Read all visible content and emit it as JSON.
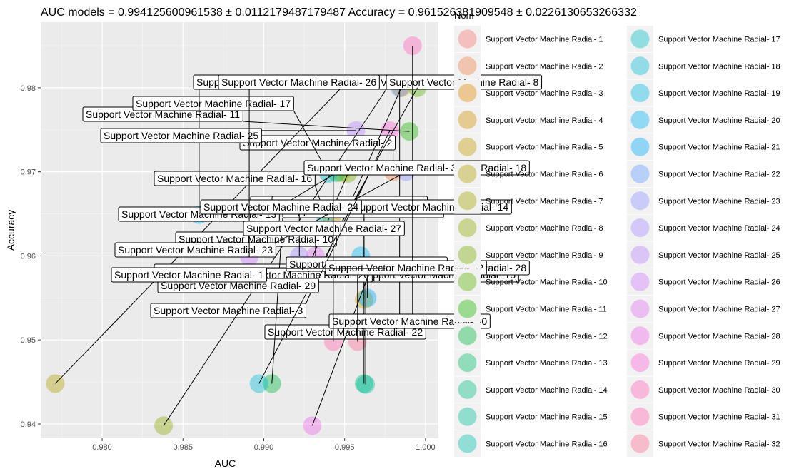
{
  "chart_data": {
    "type": "scatter",
    "title": "AUC models = 0.994125600961538 ± 0.0112179487179487  Accuracy = 0.961526381909548 ± 0.0226130653266332",
    "xlabel": "AUC",
    "ylabel": "Accuracy",
    "xlim": [
      0.9762,
      1.0008
    ],
    "ylim": [
      0.9383,
      0.9878
    ],
    "xticks": [
      0.98,
      0.985,
      0.99,
      0.995,
      1.0
    ],
    "xtick_labels": [
      "0.980",
      "0.985",
      "0.990",
      "0.995",
      "1.000"
    ],
    "yticks": [
      0.94,
      0.95,
      0.96,
      0.97,
      0.98
    ],
    "ytick_labels": [
      "0.94",
      "0.95",
      "0.96",
      "0.97",
      "0.98"
    ],
    "grid": true,
    "legend_title": "Nom",
    "legend_position": "right",
    "point_alpha": 0.4,
    "series": [
      {
        "name": "Support Vector Machine Radial- 1",
        "x": 0.9975,
        "y": 0.9585,
        "label": "Support Vector Machine Radial- 1",
        "color": "#F8766D"
      },
      {
        "name": "Support Vector Machine Radial- 2",
        "x": 0.998,
        "y": 0.97,
        "label": "Support Vector Machine Radial- 2",
        "color": "#EF7F49"
      },
      {
        "name": "Support Vector Machine Radial- 3",
        "x": 0.9985,
        "y": 0.98,
        "label": "Support Vector Machine Radial- 3",
        "color": "#E28A00"
      },
      {
        "name": "Support Vector Machine Radial- 4",
        "x": 0.9942,
        "y": 0.9647,
        "label": "Support Vector Machine Radial- 4",
        "color": "#D39200"
      },
      {
        "name": "Support Vector Machine Radial- 5",
        "x": 0.9962,
        "y": 0.9548,
        "label": "Support Vector Machine Radial- 5",
        "color": "#C49A00"
      },
      {
        "name": "Support Vector Machine Radial- 6",
        "x": 0.9771,
        "y": 0.9448,
        "label": "Support Vector Machine Radial- 6",
        "color": "#B4A000"
      },
      {
        "name": "Support Vector Machine Radial- 7",
        "x": 0.9948,
        "y": 0.9699,
        "label": "",
        "color": "#A3A500"
      },
      {
        "name": "Support Vector Machine Radial- 8",
        "x": 0.9838,
        "y": 0.9398,
        "label": "Support Vector Machine Radial- 8",
        "color": "#8FAA00"
      },
      {
        "name": "Support Vector Machine Radial- 9",
        "x": 0.9952,
        "y": 0.9698,
        "label": "Support Vector Machine Radial- 9",
        "color": "#78AF00"
      },
      {
        "name": "Support Vector Machine Radial- 10",
        "x": 0.9995,
        "y": 0.98,
        "label": "Support Vector Machine Radial- 10",
        "color": "#5BB300"
      },
      {
        "name": "Support Vector Machine Radial- 11",
        "x": 0.999,
        "y": 0.9748,
        "label": "Support Vector Machine Radial- 11",
        "color": "#1FB700"
      },
      {
        "name": "Support Vector Machine Radial- 12",
        "x": 0.9905,
        "y": 0.9448,
        "label": "Support Vector Machine Radial- 12",
        "color": "#00BA42"
      },
      {
        "name": "Support Vector Machine Radial- 13",
        "x": 0.9945,
        "y": 0.9699,
        "label": "Support Vector Machine Radial- 13",
        "color": "#00BC66"
      },
      {
        "name": "Support Vector Machine Radial- 14",
        "x": 0.9962,
        "y": 0.9448,
        "label": "Support Vector Machine Radial- 14",
        "color": "#00BE82"
      },
      {
        "name": "Support Vector Machine Radial- 15",
        "x": 0.9963,
        "y": 0.9447,
        "label": "Support Vector Machine Radial- 15",
        "color": "#00C09A"
      },
      {
        "name": "Support Vector Machine Radial- 16",
        "x": 0.9938,
        "y": 0.9648,
        "label": "Support Vector Machine Radial- 16",
        "color": "#00C0B0"
      },
      {
        "name": "Support Vector Machine Radial- 17",
        "x": 0.994,
        "y": 0.9698,
        "label": "Support Vector Machine Radial- 17",
        "color": "#00BFC4"
      },
      {
        "name": "Support Vector Machine Radial- 18",
        "x": 0.9897,
        "y": 0.9448,
        "label": "Support Vector Machine Radial- 18",
        "color": "#00BCD6"
      },
      {
        "name": "Support Vector Machine Radial- 19",
        "x": 0.986,
        "y": 0.9649,
        "label": "Support Vector Machine Radial- 19",
        "color": "#00B8E5"
      },
      {
        "name": "Support Vector Machine Radial- 20",
        "x": 0.996,
        "y": 0.96,
        "label": "Support Vector Machine Radial- 20",
        "color": "#00B2F3"
      },
      {
        "name": "Support Vector Machine Radial- 21",
        "x": 0.9964,
        "y": 0.955,
        "label": "Support Vector Machine Radial- 21",
        "color": "#00ABFD"
      },
      {
        "name": "Support Vector Machine Radial- 22",
        "x": 0.9984,
        "y": 0.98,
        "label": "Support Vector Machine Radial- 22",
        "color": "#619CFF"
      },
      {
        "name": "Support Vector Machine Radial- 23",
        "x": 0.9988,
        "y": 0.97,
        "label": "Support Vector Machine Radial- 23",
        "color": "#8B93FF"
      },
      {
        "name": "Support Vector Machine Radial- 24",
        "x": 0.9922,
        "y": 0.96,
        "label": "Support Vector Machine Radial- 24",
        "color": "#A58AFF"
      },
      {
        "name": "Support Vector Machine Radial- 25",
        "x": 0.9957,
        "y": 0.9749,
        "label": "Support Vector Machine Radial- 25",
        "color": "#B983FF"
      },
      {
        "name": "Support Vector Machine Radial- 26",
        "x": 0.9891,
        "y": 0.9599,
        "label": "Support Vector Machine Radial- 26",
        "color": "#D078FF"
      },
      {
        "name": "Support Vector Machine Radial- 27",
        "x": 0.9932,
        "y": 0.96,
        "label": "Support Vector Machine Radial- 27",
        "color": "#E36EF6"
      },
      {
        "name": "Support Vector Machine Radial- 28",
        "x": 0.993,
        "y": 0.9398,
        "label": "Support Vector Machine Radial- 28",
        "color": "#F066EA"
      },
      {
        "name": "Support Vector Machine Radial- 29",
        "x": 0.9978,
        "y": 0.9749,
        "label": "Support Vector Machine Radial- 29",
        "color": "#FA62D8"
      },
      {
        "name": "Support Vector Machine Radial- 30",
        "x": 0.9992,
        "y": 0.985,
        "label": "Support Vector Machine Radial- 30",
        "color": "#FF62BC"
      },
      {
        "name": "Support Vector Machine Radial- 31",
        "x": 0.9943,
        "y": 0.9498,
        "label": "Support Vector Machine Radial- 31",
        "color": "#FF65AC"
      },
      {
        "name": "Support Vector Machine Radial- 32",
        "x": 0.9958,
        "y": 0.9498,
        "label": "Support Vector Machine Radial- 32",
        "color": "#FF6C91"
      }
    ]
  }
}
